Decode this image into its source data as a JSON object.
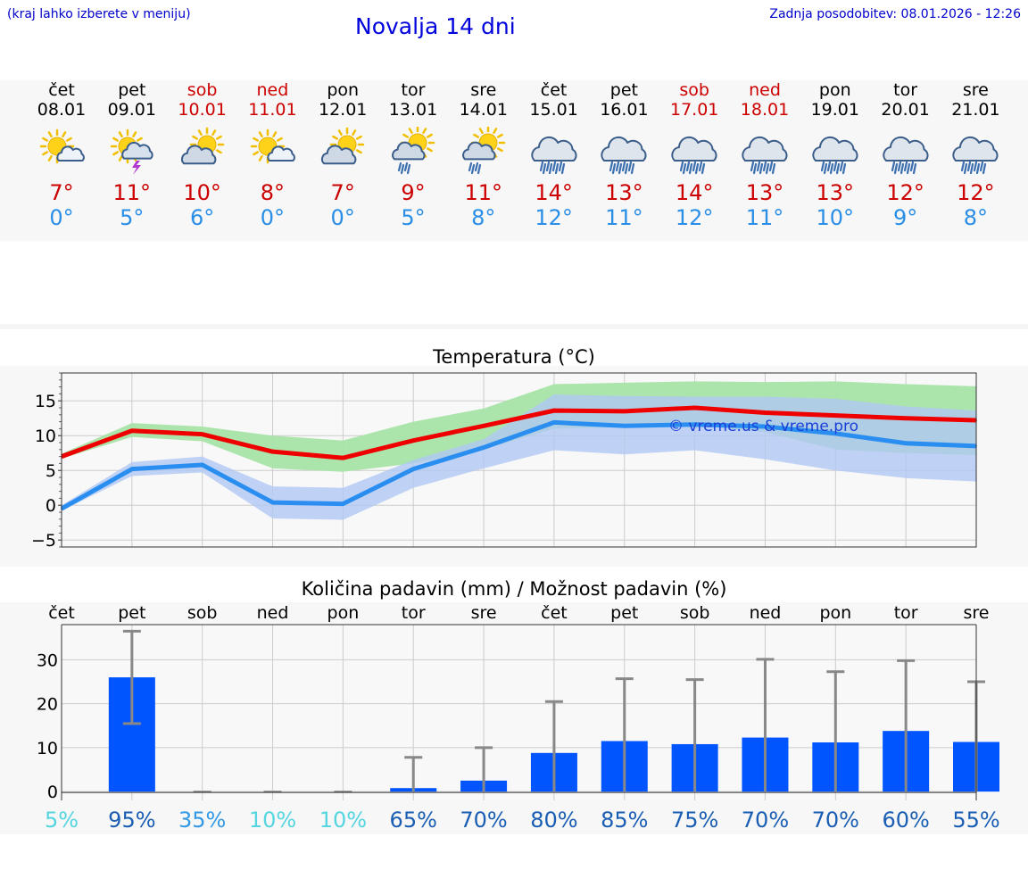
{
  "header": {
    "left_note": "(kraj lahko izberete v meniju)",
    "title": "Novalja 14 dni",
    "updated": "Zadnja posodobitev: 08.01.2026 - 12:26"
  },
  "forecast": {
    "days": [
      {
        "day": "čet",
        "date": "08.01",
        "weekend": false,
        "icon": "partly-cloudy-sun-icon",
        "max": "7°",
        "min": "0°"
      },
      {
        "day": "pet",
        "date": "09.01",
        "weekend": false,
        "icon": "sun-cloud-thunder-icon",
        "max": "11°",
        "min": "5°"
      },
      {
        "day": "sob",
        "date": "10.01",
        "weekend": true,
        "icon": "sun-cloudy-icon",
        "max": "10°",
        "min": "6°"
      },
      {
        "day": "ned",
        "date": "11.01",
        "weekend": true,
        "icon": "partly-cloudy-sun-icon",
        "max": "8°",
        "min": "0°"
      },
      {
        "day": "pon",
        "date": "12.01",
        "weekend": false,
        "icon": "sun-cloudy-icon",
        "max": "7°",
        "min": "0°"
      },
      {
        "day": "tor",
        "date": "13.01",
        "weekend": false,
        "icon": "sun-cloud-rain-icon",
        "max": "9°",
        "min": "5°"
      },
      {
        "day": "sre",
        "date": "14.01",
        "weekend": false,
        "icon": "sun-cloud-rain-icon",
        "max": "11°",
        "min": "8°"
      },
      {
        "day": "čet",
        "date": "15.01",
        "weekend": false,
        "icon": "cloud-heavy-rain-icon",
        "max": "14°",
        "min": "12°"
      },
      {
        "day": "pet",
        "date": "16.01",
        "weekend": false,
        "icon": "cloud-heavy-rain-icon",
        "max": "13°",
        "min": "11°"
      },
      {
        "day": "sob",
        "date": "17.01",
        "weekend": true,
        "icon": "cloud-heavy-rain-icon",
        "max": "14°",
        "min": "12°"
      },
      {
        "day": "ned",
        "date": "18.01",
        "weekend": true,
        "icon": "cloud-heavy-rain-icon",
        "max": "13°",
        "min": "11°"
      },
      {
        "day": "pon",
        "date": "19.01",
        "weekend": false,
        "icon": "cloud-heavy-rain-icon",
        "max": "13°",
        "min": "10°"
      },
      {
        "day": "tor",
        "date": "20.01",
        "weekend": false,
        "icon": "cloud-heavy-rain-icon",
        "max": "12°",
        "min": "9°"
      },
      {
        "day": "sre",
        "date": "21.01",
        "weekend": false,
        "icon": "cloud-heavy-rain-icon",
        "max": "12°",
        "min": "8°"
      }
    ]
  },
  "colors": {
    "max_line": "#ee0000",
    "min_line": "#2a8ef0",
    "max_band": "#a8e4a8",
    "min_band": "#b0c8f4",
    "overlap_band": "#7cc4a8",
    "precip_bar": "#0055ff",
    "error_bar": "#888888",
    "weekend_text": "#cc0000",
    "prob_high": "#1a5eb4",
    "prob_mid": "#3399e6",
    "prob_low": "#55d5e0"
  },
  "chart_data": [
    {
      "type": "line",
      "title": "Temperatura (°C)",
      "watermark": "© vreme.us & vreme.pro",
      "xlabel": "",
      "ylabel": "",
      "ylim": [
        -6,
        19
      ],
      "yticks": [
        "15",
        "10",
        "5",
        "0",
        "−5"
      ],
      "ytick_values": [
        15,
        10,
        5,
        0,
        -5
      ],
      "x": [
        0,
        1,
        2,
        3,
        4,
        5,
        6,
        7,
        8,
        9,
        10,
        11,
        12,
        13
      ],
      "series": [
        {
          "name": "max",
          "values": [
            7.0,
            10.7,
            10.2,
            7.7,
            6.8,
            9.3,
            11.4,
            13.6,
            13.5,
            14.0,
            13.3,
            12.9,
            12.5,
            12.2
          ],
          "band_low": [
            6.7,
            9.8,
            9.2,
            5.3,
            4.8,
            6.0,
            8.0,
            11.0,
            11.2,
            11.5,
            10.5,
            8.0,
            7.5,
            7.2
          ],
          "band_high": [
            7.4,
            11.8,
            11.3,
            10.0,
            9.3,
            12.0,
            13.9,
            17.4,
            17.6,
            17.8,
            17.7,
            17.8,
            17.4,
            17.1
          ]
        },
        {
          "name": "min",
          "values": [
            -0.5,
            5.2,
            5.8,
            0.4,
            0.2,
            5.2,
            8.3,
            11.9,
            11.4,
            11.6,
            11.3,
            10.3,
            8.9,
            8.5
          ],
          "band_low": [
            -0.8,
            4.2,
            4.7,
            -1.9,
            -2.1,
            2.5,
            5.3,
            7.9,
            7.3,
            7.9,
            6.6,
            5.0,
            3.9,
            3.4
          ],
          "band_high": [
            0.0,
            6.2,
            7.0,
            2.7,
            2.5,
            6.5,
            9.5,
            15.9,
            15.7,
            15.6,
            15.6,
            15.3,
            14.2,
            13.6
          ]
        }
      ]
    },
    {
      "type": "bar",
      "title": "Količina padavin (mm) / Možnost padavin (%)",
      "categories": [
        "čet",
        "pet",
        "sob",
        "ned",
        "pon",
        "tor",
        "sre",
        "čet",
        "pet",
        "sob",
        "ned",
        "pon",
        "tor",
        "sre"
      ],
      "ylim": [
        -2,
        38
      ],
      "yticks": [
        "30",
        "20",
        "10",
        "0"
      ],
      "ytick_values": [
        30,
        20,
        10,
        0
      ],
      "values": [
        0,
        26,
        0,
        0,
        0,
        0.8,
        2.5,
        8.8,
        11.5,
        10.8,
        12.3,
        11.2,
        13.8,
        11.3
      ],
      "error_low": [
        null,
        15.5,
        0,
        0,
        0,
        0,
        0,
        0,
        0,
        0,
        0,
        0,
        0,
        0
      ],
      "error_high": [
        null,
        36.5,
        0,
        0,
        0,
        7.8,
        10,
        20.5,
        25.7,
        25.5,
        30.1,
        27.3,
        29.8,
        25
      ],
      "probability": [
        "5%",
        "95%",
        "35%",
        "10%",
        "10%",
        "65%",
        "70%",
        "80%",
        "85%",
        "75%",
        "70%",
        "70%",
        "60%",
        "55%"
      ],
      "probability_level": [
        "low",
        "high",
        "mid",
        "low",
        "low",
        "high",
        "high",
        "high",
        "high",
        "high",
        "high",
        "high",
        "high",
        "high"
      ]
    }
  ]
}
